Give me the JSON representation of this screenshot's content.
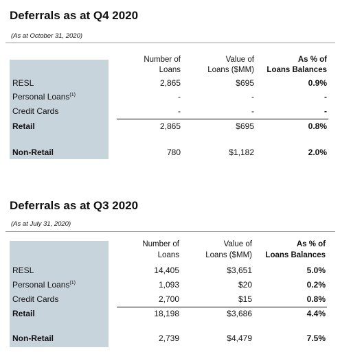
{
  "sections": [
    {
      "title": "Deferrals as at Q4 2020",
      "subtitle": "(As at October 31, 2020)",
      "table": {
        "headers": [
          [
            "Number of",
            "Loans"
          ],
          [
            "Value of",
            "Loans ($MM)"
          ],
          [
            "As % of",
            "Loans Balances"
          ]
        ],
        "rows": [
          {
            "label": "RESL",
            "cells": [
              "2,865",
              "$695",
              "0.9%"
            ]
          },
          {
            "label": "Personal Loans",
            "note": "(1)",
            "cells": [
              "-",
              "-",
              "-"
            ]
          },
          {
            "label": "Credit Cards",
            "cells": [
              "-",
              "-",
              "-"
            ]
          },
          {
            "label": "Retail",
            "cells": [
              "2,865",
              "$695",
              "0.8%"
            ]
          },
          {
            "label": "Non-Retail",
            "cells": [
              "780",
              "$1,182",
              "2.0%"
            ]
          }
        ]
      }
    },
    {
      "title": "Deferrals as at Q3 2020",
      "subtitle": "(As at July 31, 2020)",
      "table": {
        "headers": [
          [
            "Number of",
            "Loans"
          ],
          [
            "Value of",
            "Loans ($MM)"
          ],
          [
            "As % of",
            "Loans Balances"
          ]
        ],
        "rows": [
          {
            "label": "RESL",
            "cells": [
              "14,405",
              "$3,651",
              "5.0%"
            ]
          },
          {
            "label": "Personal Loans",
            "note": "(1)",
            "cells": [
              "1,093",
              "$20",
              "0.2%"
            ]
          },
          {
            "label": "Credit Cards",
            "cells": [
              "2,700",
              "$15",
              "0.8%"
            ]
          },
          {
            "label": "Retail",
            "cells": [
              "18,198",
              "$3,686",
              "4.4%"
            ]
          },
          {
            "label": "Non-Retail",
            "cells": [
              "2,739",
              "$4,479",
              "7.5%"
            ]
          }
        ]
      }
    }
  ]
}
